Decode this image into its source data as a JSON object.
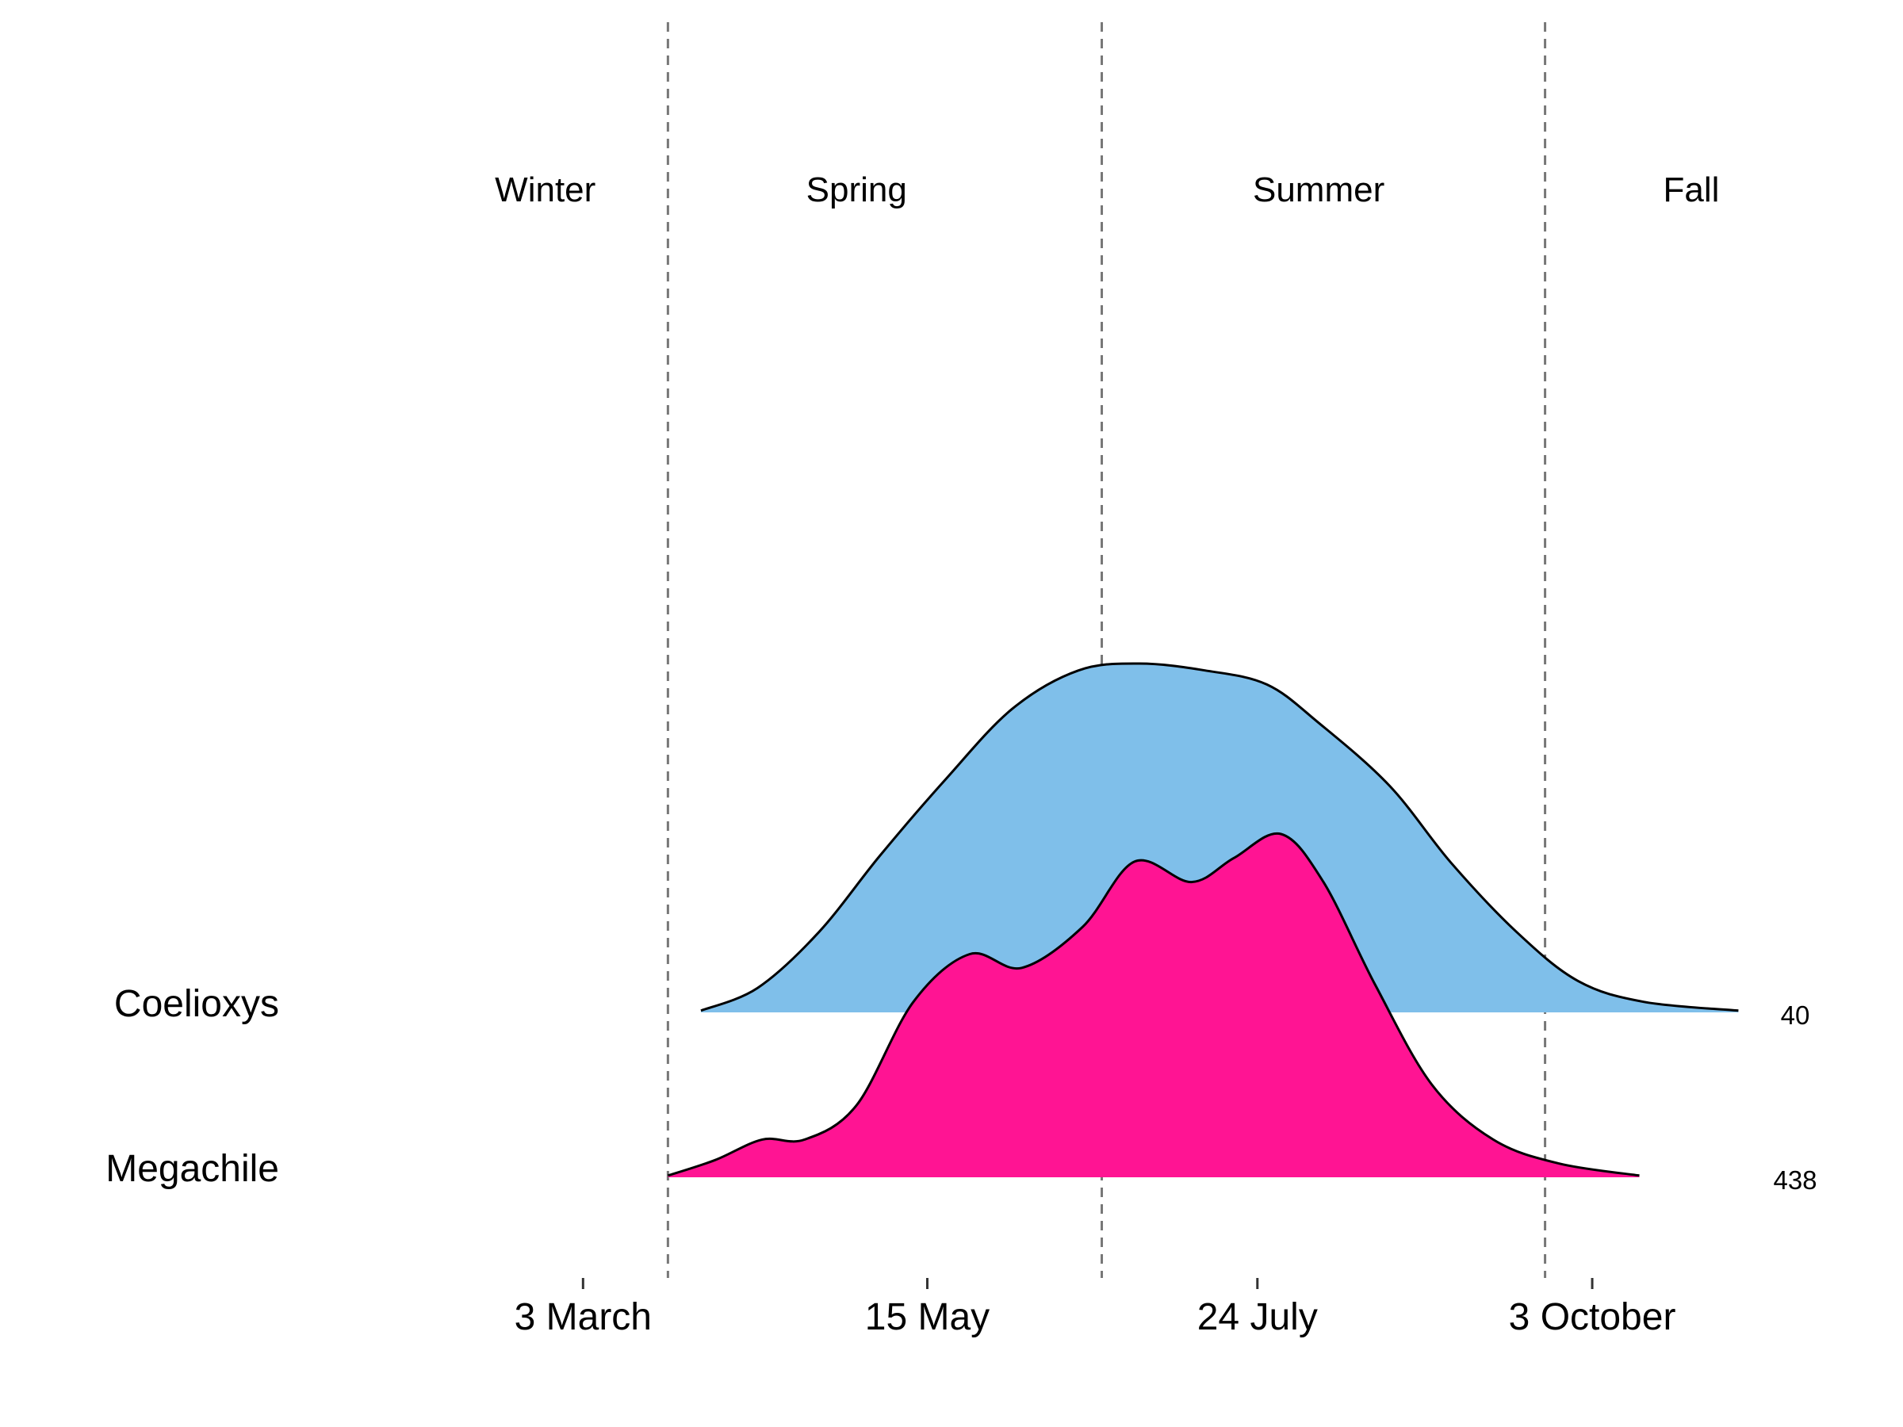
{
  "chart_data": {
    "type": "area",
    "subtype": "ridgeline-density",
    "x_axis": {
      "type": "date",
      "range": [
        "2020-01-31",
        "2020-11-11"
      ],
      "ticks": [
        {
          "date": "2020-03-03",
          "label": "3 March"
        },
        {
          "date": "2020-05-15",
          "label": "15 May"
        },
        {
          "date": "2020-07-24",
          "label": "24 July"
        },
        {
          "date": "2020-10-03",
          "label": "3 October"
        }
      ]
    },
    "season_boundaries": [
      "2020-03-21",
      "2020-06-21",
      "2020-09-23"
    ],
    "seasons": [
      {
        "name": "Winter",
        "date": "2020-02-24"
      },
      {
        "name": "Spring",
        "date": "2020-05-00"
      },
      {
        "name": "Summer",
        "date": "2020-08-06"
      },
      {
        "name": "Fall",
        "date": "2020-10-24"
      }
    ],
    "y_axis": {
      "label": "",
      "relative_density_max": 1.0
    },
    "grid": false,
    "legend": "none",
    "series": [
      {
        "name": "Coelioxys",
        "count": "40",
        "color": "#7fbfea",
        "points": [
          [
            "2020-03-28",
            0.005
          ],
          [
            "2020-04-09",
            0.07
          ],
          [
            "2020-04-22",
            0.23
          ],
          [
            "2020-05-05",
            0.45
          ],
          [
            "2020-05-19",
            0.67
          ],
          [
            "2020-06-02",
            0.87
          ],
          [
            "2020-06-16",
            0.98
          ],
          [
            "2020-06-29",
            1.0
          ],
          [
            "2020-07-13",
            0.98
          ],
          [
            "2020-07-26",
            0.94
          ],
          [
            "2020-08-06",
            0.83
          ],
          [
            "2020-08-21",
            0.65
          ],
          [
            "2020-09-03",
            0.43
          ],
          [
            "2020-09-17",
            0.23
          ],
          [
            "2020-09-30",
            0.09
          ],
          [
            "2020-10-14",
            0.03
          ],
          [
            "2020-11-03",
            0.005
          ]
        ]
      },
      {
        "name": "Megachile",
        "count": "438",
        "color": "#ff1493",
        "points": [
          [
            "2020-03-21",
            0.005
          ],
          [
            "2020-03-31",
            0.05
          ],
          [
            "2020-04-10",
            0.11
          ],
          [
            "2020-04-19",
            0.11
          ],
          [
            "2020-04-30",
            0.21
          ],
          [
            "2020-05-12",
            0.51
          ],
          [
            "2020-05-24",
            0.65
          ],
          [
            "2020-06-04",
            0.61
          ],
          [
            "2020-06-17",
            0.73
          ],
          [
            "2020-06-28",
            0.92
          ],
          [
            "2020-07-10",
            0.86
          ],
          [
            "2020-07-19",
            0.93
          ],
          [
            "2020-07-29",
            1.0
          ],
          [
            "2020-08-07",
            0.86
          ],
          [
            "2020-08-18",
            0.56
          ],
          [
            "2020-08-30",
            0.27
          ],
          [
            "2020-09-12",
            0.11
          ],
          [
            "2020-09-26",
            0.04
          ],
          [
            "2020-10-13",
            0.005
          ]
        ]
      }
    ]
  },
  "species_labels": [
    "Coelioxys",
    "Megachile"
  ]
}
